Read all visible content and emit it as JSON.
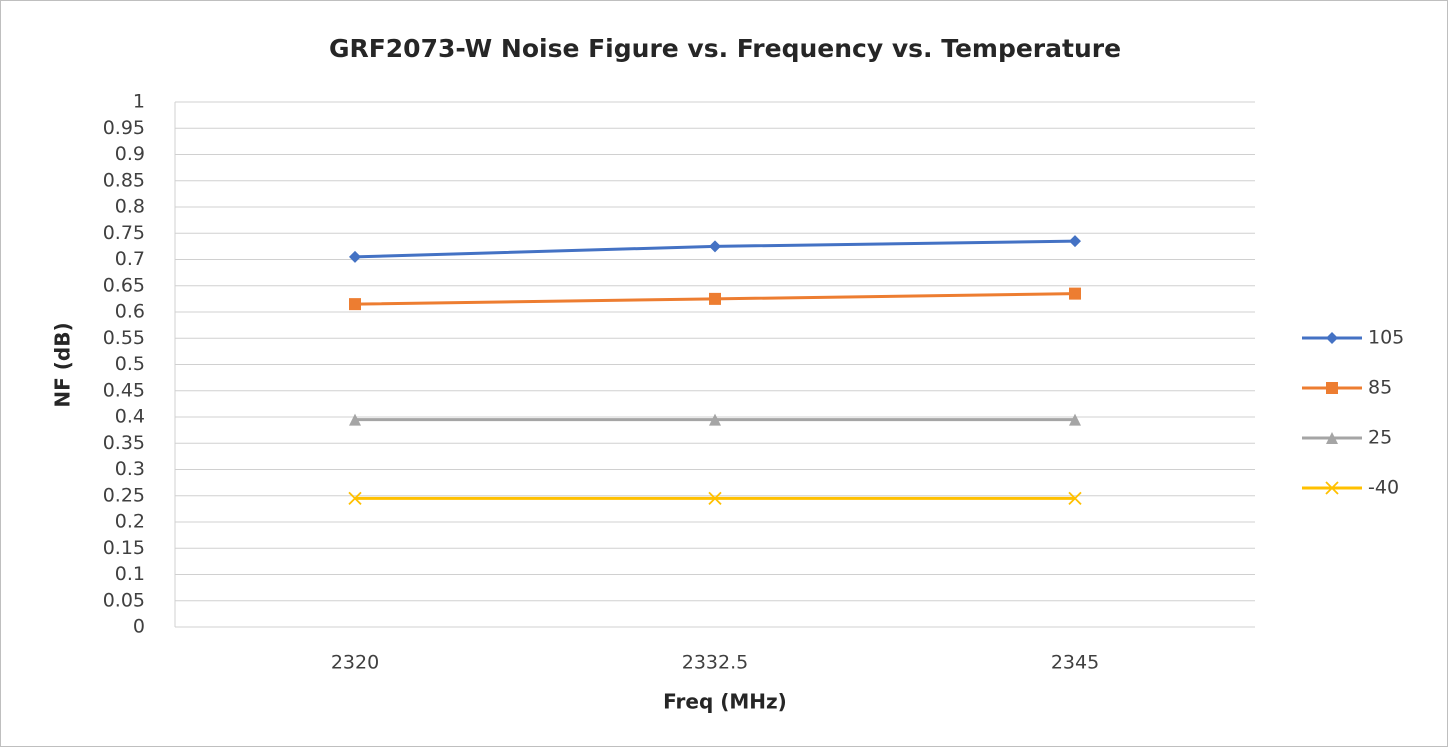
{
  "chart_data": {
    "type": "line",
    "title": "GRF2073-W Noise Figure vs. Frequency vs. Temperature",
    "x_label": "Freq (MHz)",
    "y_label": "NF (dB)",
    "categories": [
      "2320",
      "2332.5",
      "2345"
    ],
    "series": [
      {
        "name": "105",
        "color": "#4472c4",
        "marker": "diamond",
        "values": [
          0.705,
          0.725,
          0.735
        ]
      },
      {
        "name": "85",
        "color": "#ed7d31",
        "marker": "square",
        "values": [
          0.615,
          0.625,
          0.635
        ]
      },
      {
        "name": "25",
        "color": "#a5a5a5",
        "marker": "triangle",
        "values": [
          0.395,
          0.395,
          0.395
        ]
      },
      {
        "name": "-40",
        "color": "#ffc000",
        "marker": "x",
        "values": [
          0.245,
          0.245,
          0.245
        ]
      }
    ],
    "ylim": [
      0,
      1
    ],
    "yticks": [
      0,
      0.05,
      0.1,
      0.15,
      0.2,
      0.25,
      0.3,
      0.35,
      0.4,
      0.45,
      0.5,
      0.55,
      0.6,
      0.65,
      0.7,
      0.75,
      0.8,
      0.85,
      0.9,
      0.95,
      1
    ],
    "grid": true,
    "legend": "right"
  }
}
